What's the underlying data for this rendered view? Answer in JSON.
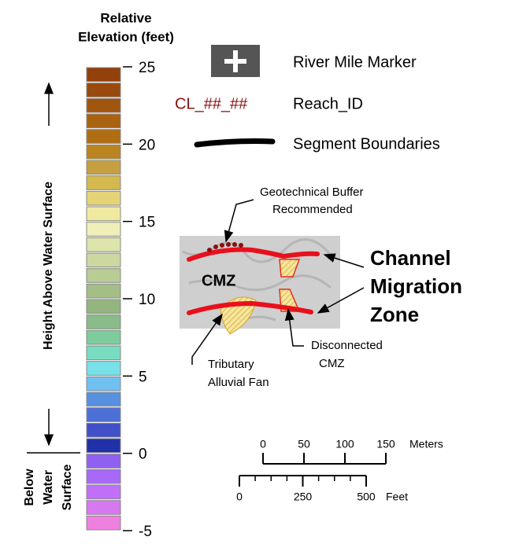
{
  "legend": {
    "title": [
      "Relative",
      "Elevation (feet)"
    ],
    "range": [
      -5,
      25
    ],
    "ticks": [
      25,
      20,
      15,
      10,
      5,
      0,
      -5
    ],
    "colors": [
      "#F080E0",
      "#D878F0",
      "#C070F8",
      "#A868F8",
      "#9060F0",
      "#2030A8",
      "#4050C8",
      "#4C70D8",
      "#5890E0",
      "#70C0F0",
      "#78E0E8",
      "#78DCC0",
      "#7CCC9C",
      "#88BC88",
      "#94B480",
      "#A4BE88",
      "#B8CC94",
      "#CCD8A0",
      "#DDE4AC",
      "#EEF0B8",
      "#F0EAA0",
      "#E4D478",
      "#D4B850",
      "#C6A040",
      "#BA8420",
      "#B06E14",
      "#A86210",
      "#A0560E",
      "#9A4A0C",
      "#93400A"
    ],
    "above_label": "Height Above Water Surface",
    "below_label": [
      "Below",
      "Water",
      "Surface"
    ]
  },
  "symbols": {
    "river_mile_marker": "River Mile Marker",
    "reach_sample": "CL_##_##",
    "reach_id": "Reach_ID",
    "segment_boundaries": "Segment Boundaries"
  },
  "cmz_example": {
    "geotechnical": [
      "Geotechnical Buffer",
      "Recommended"
    ],
    "cmz": "CMZ",
    "channel_migration_zone": [
      "Channel",
      "Migration",
      "Zone"
    ],
    "tributary": [
      "Tributary",
      "Alluvial Fan"
    ],
    "disconnected": [
      "Disconnected",
      "CMZ"
    ]
  },
  "scale_bar": {
    "meters": {
      "ticks": [
        0,
        50,
        100,
        150
      ],
      "unit": "Meters"
    },
    "feet": {
      "ticks": [
        0,
        250,
        500
      ],
      "unit": "Feet"
    }
  }
}
